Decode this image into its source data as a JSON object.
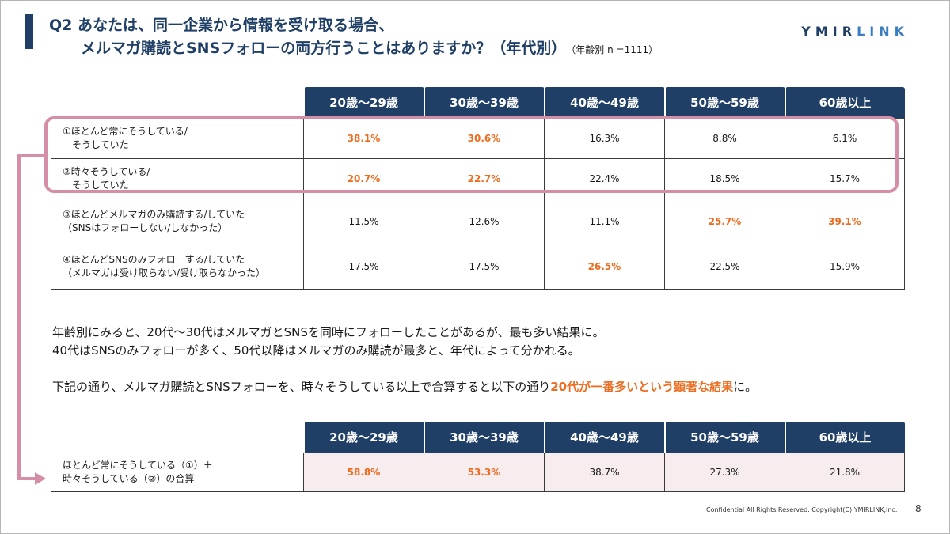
{
  "title": {
    "line1": "Q2 あなたは、同一企業から情報を受け取る場合、",
    "line2": "メルマガ購読とSNSフォローの両方行うことはありますか？（年代別）",
    "note": "（年齢別 n =1111）"
  },
  "logo": {
    "part1": "YMIR",
    "part2": "LINK"
  },
  "age_groups": [
    "20歳〜29歳",
    "30歳〜39歳",
    "40歳〜49歳",
    "50歳〜59歳",
    "60歳以上"
  ],
  "table1": {
    "rows": [
      {
        "label1": "①ほとんど常にそうしている/",
        "label2": "　そうしていた",
        "values": [
          "38.1%",
          "30.6%",
          "16.3%",
          "8.8%",
          "6.1%"
        ]
      },
      {
        "label1": "②時々そうしている/",
        "label2": "　そうしていた",
        "values": [
          "20.7%",
          "22.7%",
          "22.4%",
          "18.5%",
          "15.7%"
        ]
      },
      {
        "label1": "③ほとんどメルマガのみ購読する/していた",
        "label2": "（SNSはフォローしない/しなかった）",
        "values": [
          "11.5%",
          "12.6%",
          "11.1%",
          "25.7%",
          "39.1%"
        ]
      },
      {
        "label1": "④ほとんどSNSのみフォローする/していた",
        "label2": "（メルマガは受け取らない/受け取らなかった）",
        "values": [
          "17.5%",
          "17.5%",
          "26.5%",
          "22.5%",
          "15.9%"
        ]
      }
    ]
  },
  "body": {
    "line1": "年齢別にみると、20代〜30代はメルマガとSNSを同時にフォローしたことがあるが、最も多い結果に。",
    "line2": "40代はSNSのみフォローが多く、50代以降はメルマガのみ購読が最多と、年代によって分かれる。",
    "line3_pre": "下記の通り、メルマガ購読とSNSフォローを、時々そうしている以上で合算すると以下の通り",
    "line3_em": "20代が一番多いという顕著な結果",
    "line3_post": "に。"
  },
  "table2": {
    "label1": "ほとんど常にそうしている（①）＋",
    "label2": "時々そうしている（②）の合算",
    "values": [
      "58.8%",
      "53.3%",
      "38.7%",
      "27.3%",
      "21.8%"
    ]
  },
  "footer": {
    "copyright": "Confidential All Rights Reserved. Copyright(C) YMIRLINK,Inc.",
    "page": "8"
  },
  "colors": {
    "header_navy": "#1f3f66",
    "highlight_orange": "#ed6c1f",
    "group_pink": "#d58ea7",
    "sum_row_bg": "#f7ecee"
  }
}
